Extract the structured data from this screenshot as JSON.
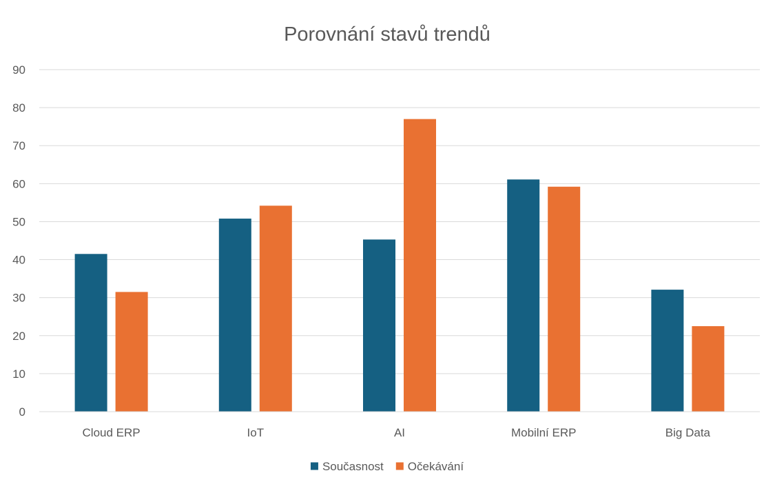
{
  "chart_data": {
    "type": "bar",
    "title": "Porovnání stavů trendů",
    "categories": [
      "Cloud ERP",
      "IoT",
      "AI",
      "Mobilní ERP",
      "Big Data"
    ],
    "series": [
      {
        "name": "Současnost",
        "values": [
          41.5,
          50.8,
          45.3,
          61.1,
          32.1
        ],
        "color": "#156082"
      },
      {
        "name": "Očekávání",
        "values": [
          31.5,
          54.2,
          77.0,
          59.2,
          22.5
        ],
        "color": "#e97132"
      }
    ],
    "ylim": [
      0,
      90
    ],
    "yticks": [
      0,
      10,
      20,
      30,
      40,
      50,
      60,
      70,
      80,
      90
    ],
    "xlabel": "",
    "ylabel": "",
    "grid": true,
    "legend_position": "bottom"
  }
}
